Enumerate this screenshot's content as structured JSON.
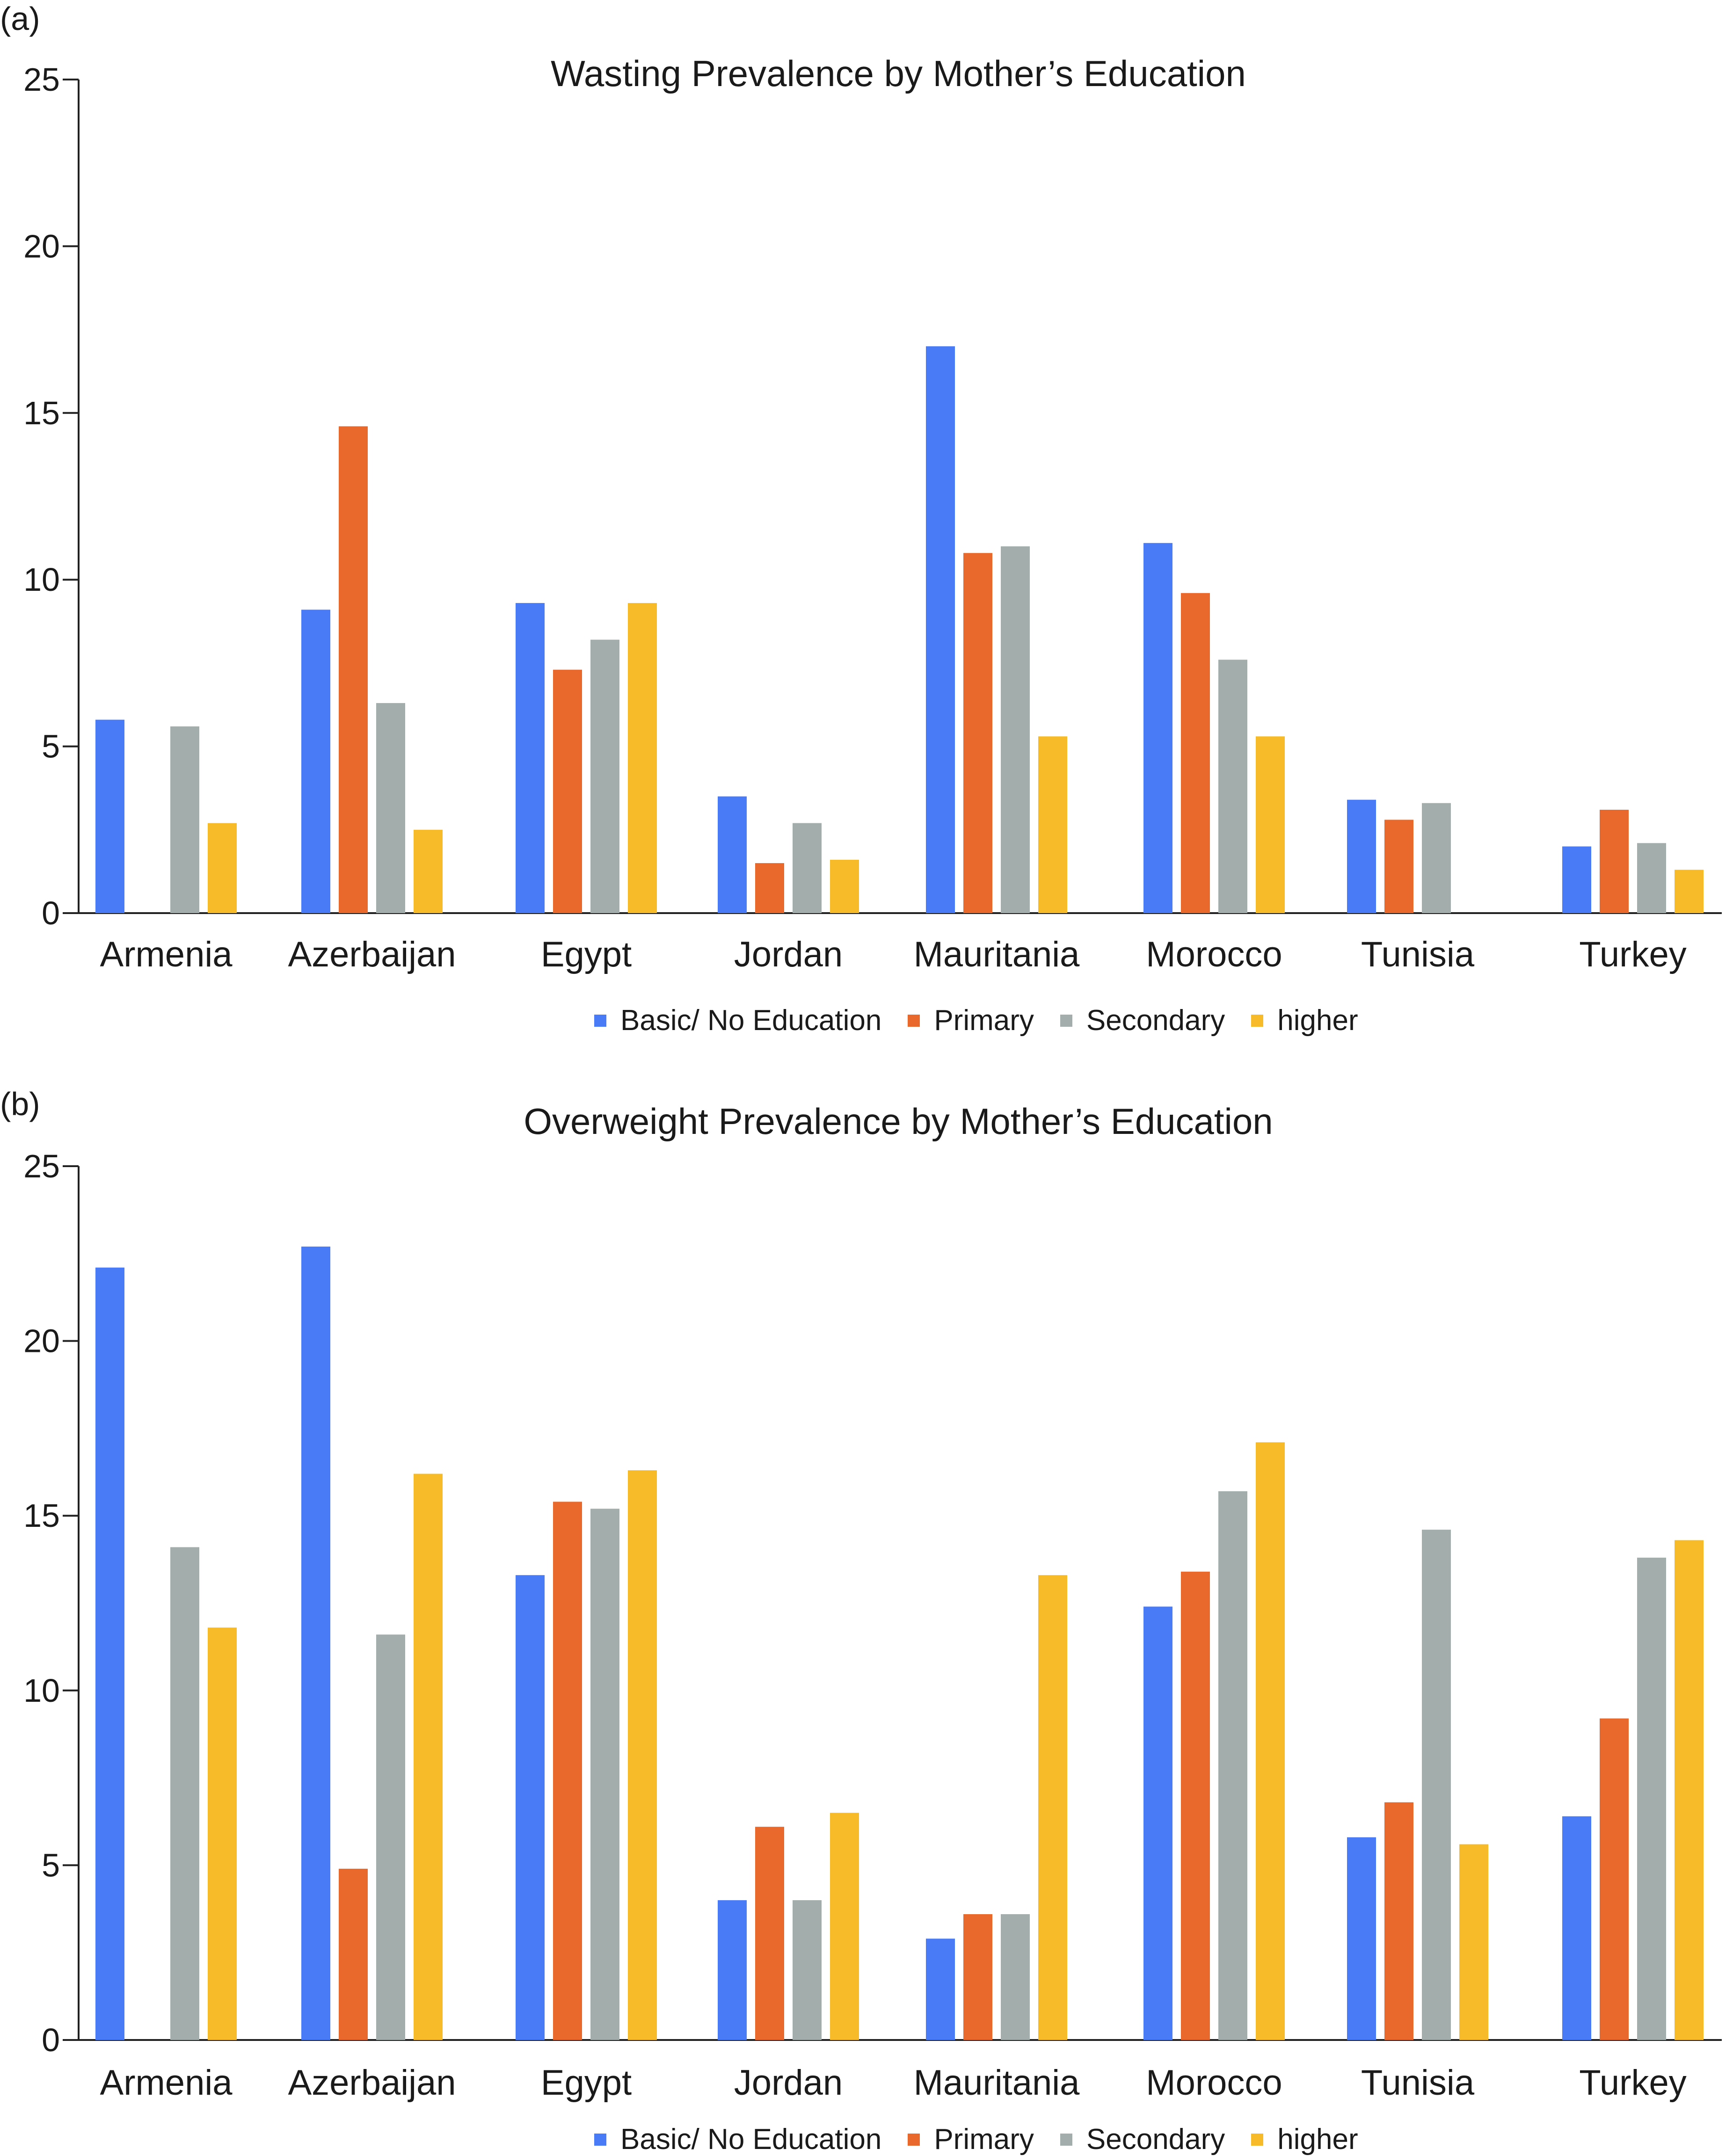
{
  "colors": {
    "Basic/ No Education": "#4a7bf7",
    "Primary": "#e8692b",
    "Secondary": "#a3adab",
    "higher": "#f7bb2a"
  },
  "legend": [
    {
      "label": "Basic/ No Education",
      "color": "#4a7bf7"
    },
    {
      "label": "Primary",
      "color": "#e8692b"
    },
    {
      "label": "Secondary",
      "color": "#a3adab"
    },
    {
      "label": "higher",
      "color": "#f7bb2a"
    }
  ],
  "chart_data": [
    {
      "panel": "(a)",
      "type": "bar",
      "title": "Wasting Prevalence by Mother’s Education",
      "categories": [
        "Armenia",
        "Azerbaijan",
        "Egypt",
        "Jordan",
        "Mauritania",
        "Morocco",
        "Tunisia",
        "Turkey"
      ],
      "yticks": [
        "0",
        "5",
        "10",
        "15",
        "20",
        "25"
      ],
      "ylim": [
        0,
        25
      ],
      "legend_position": "bottom",
      "series": [
        {
          "name": "Basic/ No Education",
          "values": [
            5.8,
            9.1,
            9.3,
            3.5,
            17.0,
            11.1,
            3.4,
            2.0
          ]
        },
        {
          "name": "Primary",
          "values": [
            null,
            14.6,
            7.3,
            1.5,
            10.8,
            9.6,
            2.8,
            3.1
          ]
        },
        {
          "name": "Secondary",
          "values": [
            5.6,
            6.3,
            8.2,
            2.7,
            11.0,
            7.6,
            3.3,
            2.1
          ]
        },
        {
          "name": "higher",
          "values": [
            2.7,
            2.5,
            9.3,
            1.6,
            5.3,
            5.3,
            null,
            1.3
          ]
        }
      ]
    },
    {
      "panel": "(b)",
      "type": "bar",
      "title": "Overweight Prevalence by Mother’s Education",
      "categories": [
        "Armenia",
        "Azerbaijan",
        "Egypt",
        "Jordan",
        "Mauritania",
        "Morocco",
        "Tunisia",
        "Turkey"
      ],
      "yticks": [
        "0",
        "5",
        "10",
        "15",
        "20",
        "25"
      ],
      "ylim": [
        0,
        25
      ],
      "legend_position": "bottom",
      "series": [
        {
          "name": "Basic/ No Education",
          "values": [
            22.1,
            22.7,
            13.3,
            4.0,
            2.9,
            12.4,
            5.8,
            6.4
          ]
        },
        {
          "name": "Primary",
          "values": [
            null,
            4.9,
            15.4,
            6.1,
            3.6,
            13.4,
            6.8,
            9.2
          ]
        },
        {
          "name": "Secondary",
          "values": [
            14.1,
            11.6,
            15.2,
            4.0,
            3.6,
            15.7,
            14.6,
            13.8
          ]
        },
        {
          "name": "higher",
          "values": [
            11.8,
            16.2,
            16.3,
            6.5,
            13.3,
            17.1,
            5.6,
            14.3
          ]
        }
      ]
    }
  ]
}
